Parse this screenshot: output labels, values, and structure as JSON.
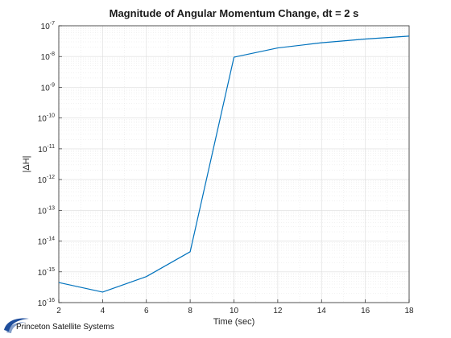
{
  "chart_data": {
    "type": "line",
    "title": "Magnitude of Angular Momentum Change, dt = 2 s",
    "xlabel": "Time (sec)",
    "ylabel": "|ΔH|",
    "xlim": [
      2,
      18
    ],
    "ylim": [
      1e-16,
      1e-07
    ],
    "yscale": "log",
    "grid": true,
    "minor_grid": true,
    "x_ticks": [
      2,
      4,
      6,
      8,
      10,
      12,
      14,
      16,
      18
    ],
    "y_tick_exponents": [
      -16,
      -15,
      -14,
      -13,
      -12,
      -11,
      -10,
      -9,
      -8,
      -7
    ],
    "series": [
      {
        "color": "#0072BD",
        "x": [
          2,
          4,
          6,
          8,
          10,
          12,
          14,
          16,
          18
        ],
        "y": [
          4.5e-16,
          2.2e-16,
          7e-16,
          4.5e-15,
          9.5e-09,
          1.9e-08,
          2.8e-08,
          3.7e-08,
          4.6e-08
        ]
      }
    ]
  },
  "logo": {
    "text": "Princeton Satellite Systems",
    "color": "#1f4e9c"
  }
}
